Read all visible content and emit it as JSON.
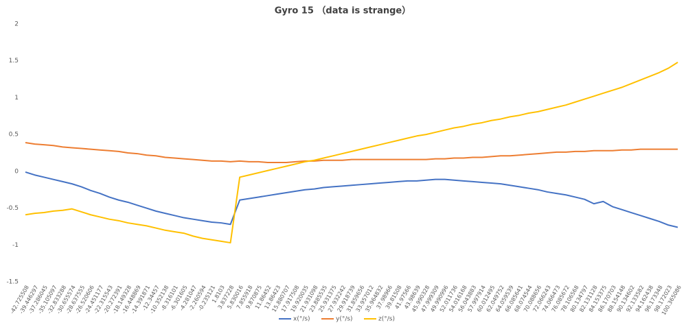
{
  "chart_data": {
    "type": "line",
    "title": "Gyro 15 （data is strange）",
    "categories": [
      "-42.725508",
      "-39.446297",
      "-37.286045",
      "-35.105097",
      "-32.833288",
      "-30.655574",
      "-28.637555",
      "-26.520606",
      "-24.451177",
      "-22.315543",
      "-20.272391",
      "-18.149328",
      "-16.448869",
      "-14.391871",
      "-12.34457",
      "-10.352138",
      "-8.316101",
      "-6.301605",
      "-4.281047",
      "-2.260594",
      "-0.235121",
      "1.8103",
      "3.837228",
      "5.830016",
      "7.855918",
      "9.870875",
      "11.86452",
      "13.86423",
      "15.880707",
      "17.917508",
      "19.920035",
      "21.931098",
      "23.885535",
      "25.931375",
      "27.932242",
      "29.918739",
      "31.859656",
      "33.957012",
      "35.964832",
      "37.98966",
      "39.81508",
      "41.97566",
      "43.98639",
      "45.990328",
      "47.999309",
      "49.990996",
      "52.011736",
      "54.016168",
      "56.043883",
      "57.997914",
      "60.012495",
      "62.049752",
      "64.059539",
      "66.085641",
      "68.074544",
      "70.088656",
      "72.066243",
      "74.066473",
      "76.085672",
      "78.106568",
      "80.134797",
      "82.131128",
      "84.153375",
      "86.170703",
      "88.154148",
      "90.134602",
      "92.133582",
      "94.162438",
      "96.173348",
      "98.172023",
      "100.365086"
    ],
    "series": [
      {
        "name": "x(°/s)",
        "color": "#4472c4",
        "values": [
          -0.01,
          -0.05,
          -0.08,
          -0.11,
          -0.14,
          -0.17,
          -0.21,
          -0.26,
          -0.3,
          -0.35,
          -0.39,
          -0.42,
          -0.46,
          -0.5,
          -0.54,
          -0.57,
          -0.6,
          -0.63,
          -0.65,
          -0.67,
          -0.69,
          -0.7,
          -0.72,
          -0.39,
          -0.37,
          -0.35,
          -0.33,
          -0.31,
          -0.29,
          -0.27,
          -0.25,
          -0.24,
          -0.22,
          -0.21,
          -0.2,
          -0.19,
          -0.18,
          -0.17,
          -0.16,
          -0.15,
          -0.14,
          -0.13,
          -0.13,
          -0.12,
          -0.11,
          -0.11,
          -0.12,
          -0.13,
          -0.14,
          -0.15,
          -0.16,
          -0.17,
          -0.19,
          -0.21,
          -0.23,
          -0.25,
          -0.28,
          -0.3,
          -0.32,
          -0.35,
          -0.38,
          -0.44,
          -0.41,
          -0.48,
          -0.52,
          -0.56,
          -0.6,
          -0.64,
          -0.68,
          -0.73,
          -0.76
        ]
      },
      {
        "name": "y(°/s)",
        "color": "#ed7d31",
        "values": [
          0.39,
          0.37,
          0.36,
          0.35,
          0.33,
          0.32,
          0.31,
          0.3,
          0.29,
          0.28,
          0.27,
          0.25,
          0.24,
          0.22,
          0.21,
          0.19,
          0.18,
          0.17,
          0.16,
          0.15,
          0.14,
          0.14,
          0.13,
          0.14,
          0.13,
          0.13,
          0.12,
          0.12,
          0.12,
          0.13,
          0.14,
          0.14,
          0.15,
          0.15,
          0.15,
          0.16,
          0.16,
          0.16,
          0.16,
          0.16,
          0.16,
          0.16,
          0.16,
          0.16,
          0.17,
          0.17,
          0.18,
          0.18,
          0.19,
          0.19,
          0.2,
          0.21,
          0.21,
          0.22,
          0.23,
          0.24,
          0.25,
          0.26,
          0.26,
          0.27,
          0.27,
          0.28,
          0.28,
          0.28,
          0.29,
          0.29,
          0.3,
          0.3,
          0.3,
          0.3,
          0.3
        ]
      },
      {
        "name": "z(°/s)",
        "color": "#ffc000",
        "values": [
          -0.59,
          -0.57,
          -0.56,
          -0.54,
          -0.53,
          -0.51,
          -0.55,
          -0.59,
          -0.62,
          -0.65,
          -0.67,
          -0.7,
          -0.72,
          -0.74,
          -0.77,
          -0.8,
          -0.82,
          -0.84,
          -0.88,
          -0.91,
          -0.93,
          -0.95,
          -0.97,
          -0.08,
          -0.05,
          -0.02,
          0.01,
          0.04,
          0.07,
          0.1,
          0.13,
          0.15,
          0.18,
          0.21,
          0.24,
          0.27,
          0.3,
          0.33,
          0.36,
          0.39,
          0.42,
          0.45,
          0.48,
          0.5,
          0.53,
          0.56,
          0.59,
          0.61,
          0.64,
          0.66,
          0.69,
          0.71,
          0.74,
          0.76,
          0.79,
          0.81,
          0.84,
          0.87,
          0.9,
          0.94,
          0.98,
          1.02,
          1.06,
          1.1,
          1.14,
          1.19,
          1.24,
          1.29,
          1.34,
          1.4,
          1.48
        ]
      }
    ],
    "ylim": [
      -1.5,
      2
    ],
    "yticks": [
      -1.5,
      -1,
      -0.5,
      0,
      0.5,
      1,
      1.5,
      2
    ],
    "grid": false,
    "legend": "bottom"
  }
}
